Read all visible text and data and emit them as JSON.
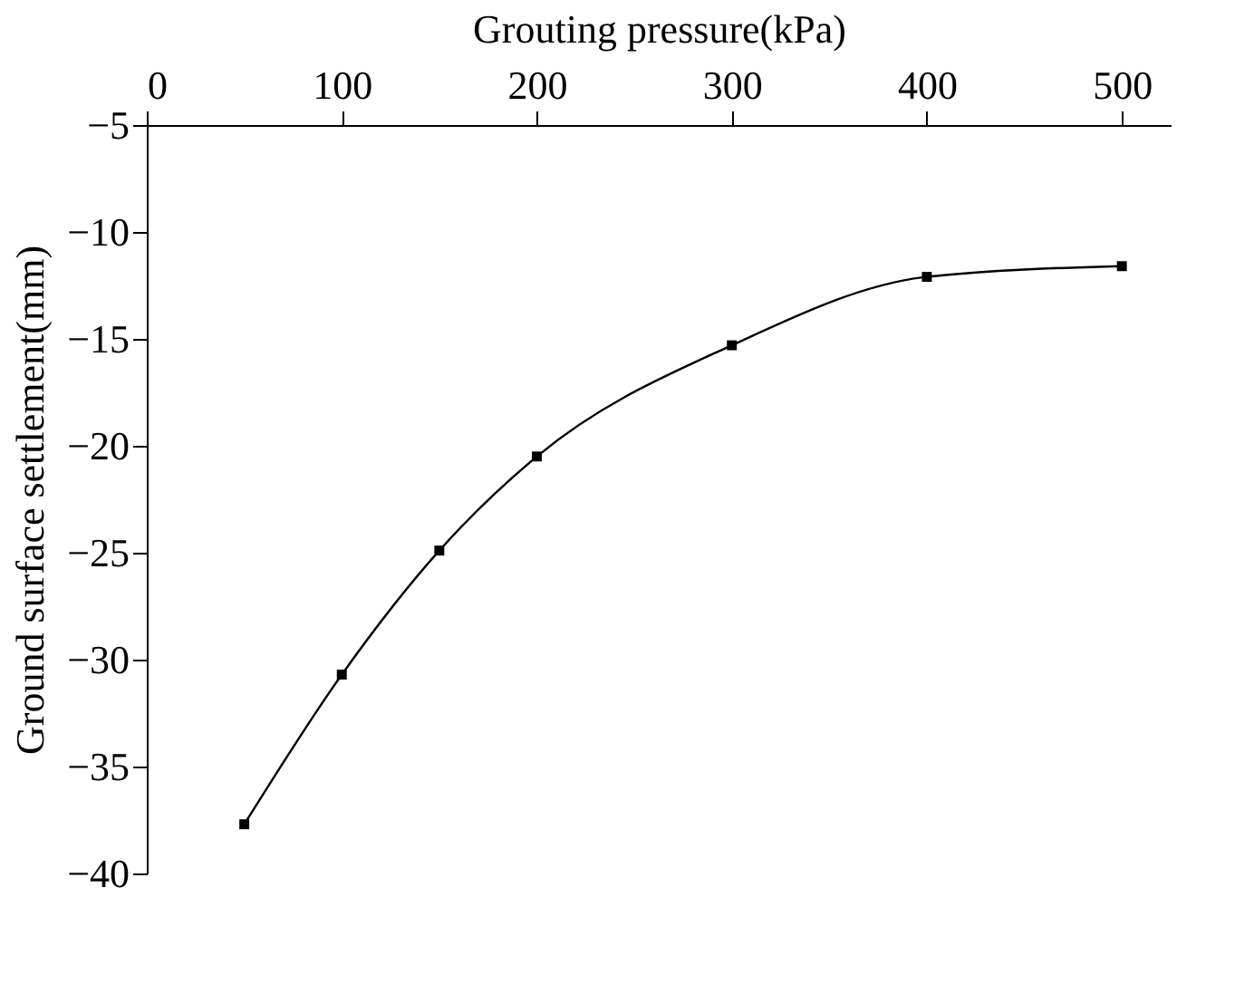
{
  "chart_data": {
    "type": "line",
    "xlabel": "Grouting pressure(kPa)",
    "ylabel": "Ground surface settlement(mm)",
    "x": [
      50,
      100,
      150,
      200,
      300,
      400,
      500
    ],
    "series": [
      {
        "color": "#000000",
        "values": [
          -37.7,
          -30.7,
          -24.9,
          -20.5,
          -15.3,
          -12.1,
          -11.6
        ]
      }
    ],
    "xlim": [
      0,
      525
    ],
    "xticks": [
      0,
      100,
      200,
      300,
      400,
      500
    ],
    "ylim": [
      -40,
      -5
    ],
    "yticks": [
      -40,
      -35,
      -30,
      -25,
      -20,
      -15,
      -10,
      -5
    ],
    "marker": "square",
    "line_style": "solid",
    "grid": false
  }
}
